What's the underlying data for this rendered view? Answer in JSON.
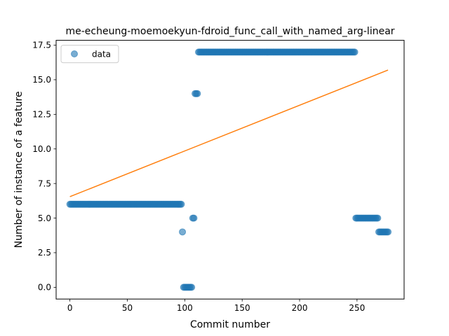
{
  "chart_data": {
    "type": "scatter",
    "title": "me-echeung-moemoekyun-fdroid_func_call_with_named_arg-linear",
    "xlabel": "Commit number",
    "ylabel": "Number of instance of a feature",
    "xlim": [
      -12,
      291
    ],
    "ylim": [
      -0.85,
      17.85
    ],
    "xticks": [
      0,
      50,
      100,
      150,
      200,
      250
    ],
    "yticks": [
      0.0,
      2.5,
      5.0,
      7.5,
      10.0,
      12.5,
      15.0,
      17.5
    ],
    "xtick_labels": [
      "0",
      "50",
      "100",
      "150",
      "200",
      "250"
    ],
    "ytick_labels": [
      "0.0",
      "2.5",
      "5.0",
      "7.5",
      "10.0",
      "12.5",
      "15.0",
      "17.5"
    ],
    "grid": false,
    "legend": {
      "position": "upper-left",
      "entries": [
        "data"
      ]
    },
    "colors": {
      "data": "#1f77b4",
      "fit": "#ff7f0e"
    },
    "series": [
      {
        "name": "data",
        "kind": "scatter",
        "segments": [
          {
            "x_start": 0,
            "x_end": 97,
            "y": 6
          },
          {
            "x_start": 98,
            "x_end": 98,
            "y": 4
          },
          {
            "x_start": 99,
            "x_end": 106,
            "y": 0
          },
          {
            "x_start": 107,
            "x_end": 108,
            "y": 5
          },
          {
            "x_start": 109,
            "x_end": 111,
            "y": 14
          },
          {
            "x_start": 112,
            "x_end": 248,
            "y": 17
          },
          {
            "x_start": 249,
            "x_end": 268,
            "y": 5
          },
          {
            "x_start": 269,
            "x_end": 277,
            "y": 4
          }
        ]
      },
      {
        "kind": "line",
        "x": [
          0,
          277
        ],
        "y": [
          6.55,
          15.7
        ]
      }
    ]
  }
}
